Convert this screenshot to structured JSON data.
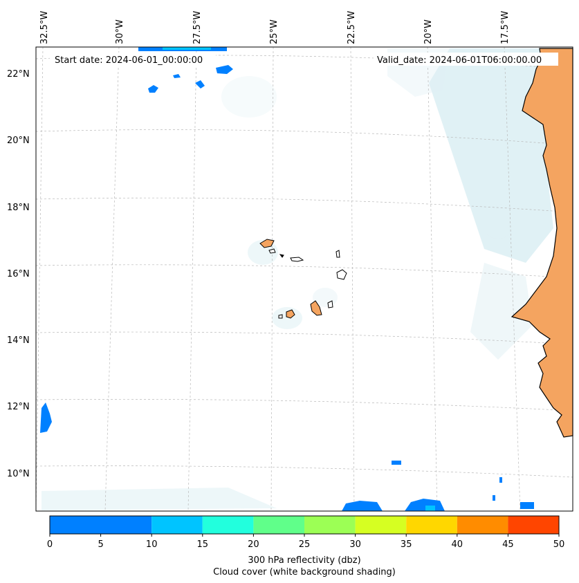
{
  "map": {
    "start_date_label": "Start date: 2024-06-01_00:00:00",
    "valid_date_label": "Valid_date: 2024-06-01T06:00:00.00",
    "lon_labels": [
      "32.5°W",
      "30°W",
      "27.5°W",
      "25°W",
      "22.5°W",
      "20°W",
      "17.5°W"
    ],
    "lat_labels": [
      "22°N",
      "20°N",
      "18°N",
      "16°N",
      "14°N",
      "12°N",
      "10°N"
    ],
    "land_color": "#f4a460",
    "coastline_color": "#000000",
    "cloud_color": "#cfe8ef",
    "gridlines": true
  },
  "colorbar": {
    "ticks": [
      "0",
      "5",
      "10",
      "15",
      "20",
      "25",
      "30",
      "35",
      "40",
      "45",
      "50"
    ],
    "colors": [
      "#0080ff",
      "#00c4ff",
      "#22ffdd",
      "#60ff8a",
      "#9cff55",
      "#d6ff22",
      "#ffd700",
      "#ff8c00",
      "#ff4500"
    ],
    "label_line1": "300 hPa reflectivity (dbz)",
    "label_line2": "Cloud cover (white background shading)"
  }
}
